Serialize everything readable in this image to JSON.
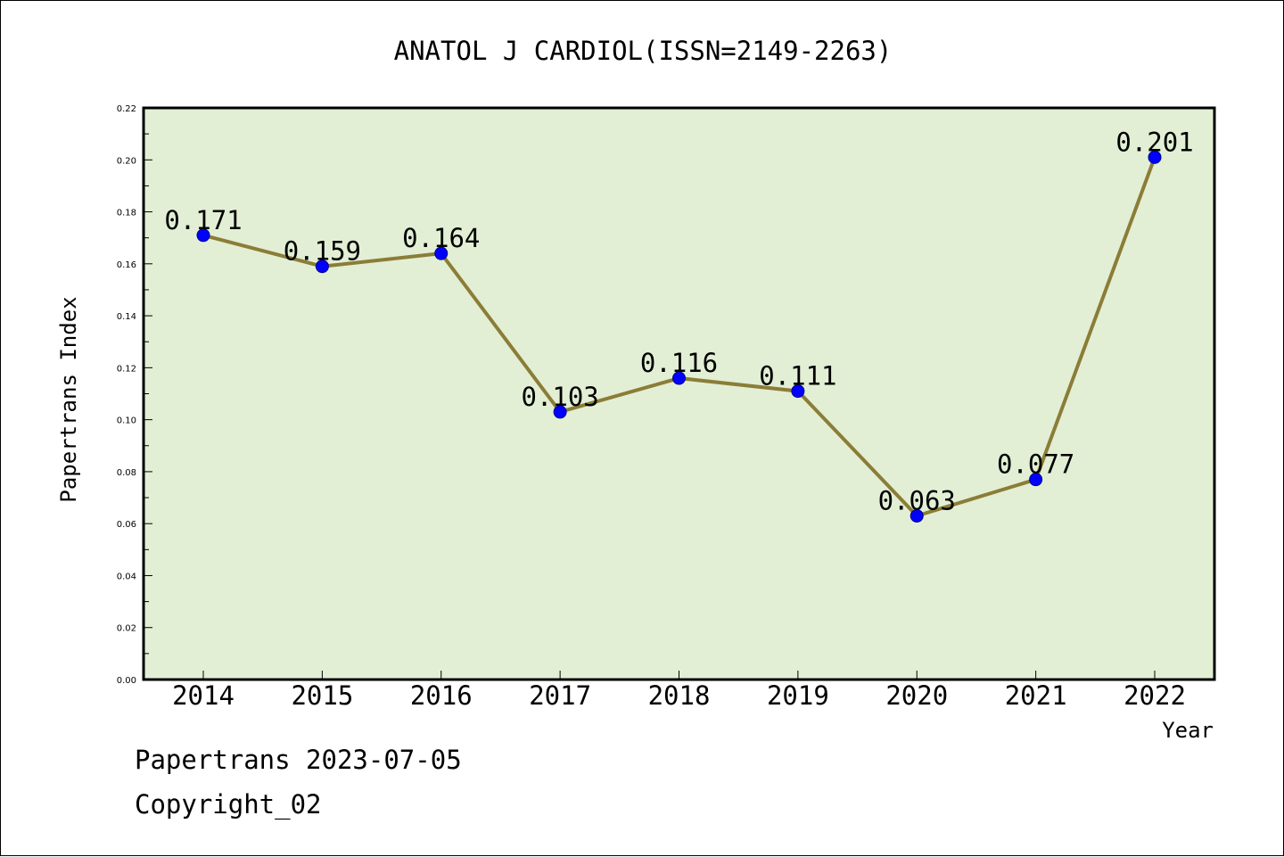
{
  "chart_data": {
    "type": "line",
    "title": "ANATOL J CARDIOL(ISSN=2149-2263)",
    "xlabel": "Year",
    "ylabel": "Papertrans Index",
    "categories": [
      "2014",
      "2015",
      "2016",
      "2017",
      "2018",
      "2019",
      "2020",
      "2021",
      "2022"
    ],
    "series": [
      {
        "values": [
          0.171,
          0.159,
          0.164,
          0.103,
          0.116,
          0.111,
          0.063,
          0.077,
          0.201
        ],
        "data_labels": [
          "0.171",
          "0.159",
          "0.164",
          "0.103",
          "0.116",
          "0.111",
          "0.063",
          "0.077",
          "0.201"
        ]
      }
    ],
    "ylim": [
      0,
      0.22
    ],
    "yticks": [
      0.0,
      0.02,
      0.04,
      0.06,
      0.08,
      0.1,
      0.12,
      0.14,
      0.16,
      0.18,
      0.2,
      0.22
    ],
    "ytick_labels": [
      "0.00",
      "0.02",
      "0.04",
      "0.06",
      "0.08",
      "0.10",
      "0.12",
      "0.14",
      "0.16",
      "0.18",
      "0.20",
      "0.22"
    ],
    "grid": false,
    "legend": "none",
    "colors": {
      "plot_background": "#e2efd5",
      "line": "#8b7d37",
      "marker": "#0000ff",
      "axis": "#000000"
    }
  },
  "footer": {
    "source_line": "Papertrans 2023-07-05",
    "copyright_line": "Copyright_02"
  }
}
